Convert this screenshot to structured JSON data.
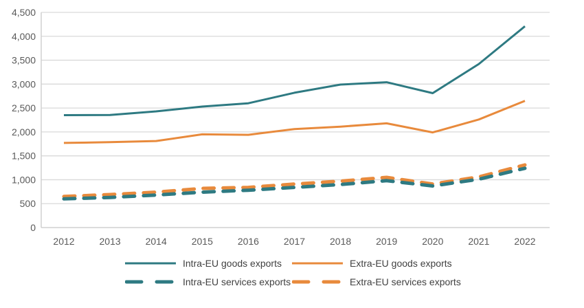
{
  "chart_data": {
    "type": "line",
    "title": "",
    "xlabel": "",
    "ylabel": "",
    "x": [
      "2012",
      "2013",
      "2014",
      "2015",
      "2016",
      "2017",
      "2018",
      "2019",
      "2020",
      "2021",
      "2022"
    ],
    "ylim": [
      0,
      4500
    ],
    "yticks": [
      0,
      500,
      1000,
      1500,
      2000,
      2500,
      3000,
      3500,
      4000,
      4500
    ],
    "ytick_labels": [
      "0",
      "500",
      "1,000",
      "1,500",
      "2,000",
      "2,500",
      "3,000",
      "3,500",
      "4,000",
      "4,500"
    ],
    "grid": "horizontal",
    "legend_position": "bottom",
    "series": [
      {
        "name": "Intra-EU goods exports",
        "color": "#2E7A82",
        "style": "solid",
        "values": [
          2350,
          2355,
          2430,
          2530,
          2600,
          2820,
          2990,
          3040,
          2810,
          3420,
          4210
        ]
      },
      {
        "name": "Extra-EU goods exports",
        "color": "#E88A3C",
        "style": "solid",
        "values": [
          1770,
          1785,
          1810,
          1950,
          1940,
          2060,
          2110,
          2180,
          1990,
          2260,
          2650
        ]
      },
      {
        "name": "Intra-EU services exports",
        "color": "#2E7A82",
        "style": "dashed",
        "values": [
          600,
          630,
          680,
          740,
          780,
          840,
          900,
          980,
          870,
          1010,
          1240
        ]
      },
      {
        "name": "Extra-EU services exports",
        "color": "#E88A3C",
        "style": "dashed",
        "values": [
          650,
          690,
          740,
          820,
          840,
          910,
          970,
          1050,
          910,
          1060,
          1310
        ]
      }
    ]
  }
}
